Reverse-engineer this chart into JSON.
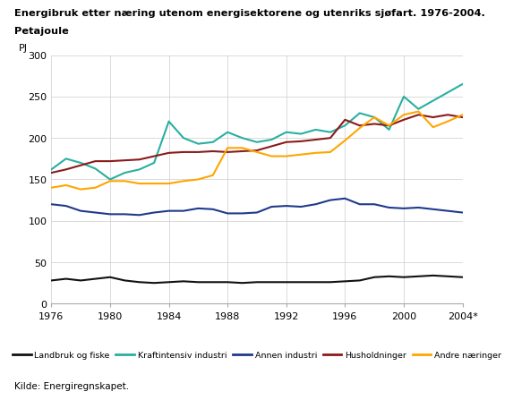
{
  "title_line1": "Energibruk etter næring utenom energisektorene og utenriks sjøfart. 1976-2004.",
  "title_line2": "Petajoule",
  "ylabel": "PJ",
  "years": [
    1976,
    1977,
    1978,
    1979,
    1980,
    1981,
    1982,
    1983,
    1984,
    1985,
    1986,
    1987,
    1988,
    1989,
    1990,
    1991,
    1992,
    1993,
    1994,
    1995,
    1996,
    1997,
    1998,
    1999,
    2000,
    2001,
    2002,
    2003,
    2004
  ],
  "series": {
    "Landbruk og fiske": {
      "color": "#111111",
      "data": [
        28,
        30,
        28,
        30,
        32,
        28,
        26,
        25,
        26,
        27,
        26,
        26,
        26,
        25,
        26,
        26,
        26,
        26,
        26,
        26,
        27,
        28,
        32,
        33,
        32,
        33,
        34,
        33,
        32
      ]
    },
    "Kraftintensiv industri": {
      "color": "#2AAFA0",
      "data": [
        162,
        175,
        170,
        163,
        150,
        158,
        162,
        170,
        220,
        200,
        193,
        195,
        207,
        200,
        195,
        198,
        207,
        205,
        210,
        207,
        215,
        230,
        225,
        210,
        250,
        235,
        245,
        255,
        265
      ]
    },
    "Annen industri": {
      "color": "#1F3A8C",
      "data": [
        120,
        118,
        112,
        110,
        108,
        108,
        107,
        110,
        112,
        112,
        115,
        114,
        109,
        109,
        110,
        117,
        118,
        117,
        120,
        125,
        127,
        120,
        120,
        116,
        115,
        116,
        114,
        112,
        110
      ]
    },
    "Husholdninger": {
      "color": "#8B1A1A",
      "data": [
        158,
        162,
        167,
        172,
        172,
        173,
        174,
        178,
        182,
        183,
        183,
        184,
        183,
        184,
        185,
        190,
        195,
        196,
        198,
        200,
        222,
        215,
        217,
        215,
        222,
        228,
        225,
        228,
        225
      ]
    },
    "Andre næringer": {
      "color": "#FFA500",
      "data": [
        140,
        143,
        138,
        140,
        148,
        148,
        145,
        145,
        145,
        148,
        150,
        155,
        188,
        188,
        183,
        178,
        178,
        180,
        182,
        183,
        197,
        212,
        225,
        215,
        228,
        232,
        213,
        220,
        228
      ]
    }
  },
  "xlim": [
    1976,
    2004
  ],
  "ylim": [
    0,
    300
  ],
  "yticks": [
    0,
    50,
    100,
    150,
    200,
    250,
    300
  ],
  "xtick_vals": [
    1976,
    1980,
    1984,
    1988,
    1992,
    1996,
    2000,
    2004
  ],
  "xtick_labels": [
    "1976",
    "1980",
    "1984",
    "1988",
    "1992",
    "1996",
    "2000",
    "2004*"
  ],
  "source": "Kilde: Energiregnskapet.",
  "background_color": "#ffffff",
  "grid_color": "#cccccc"
}
